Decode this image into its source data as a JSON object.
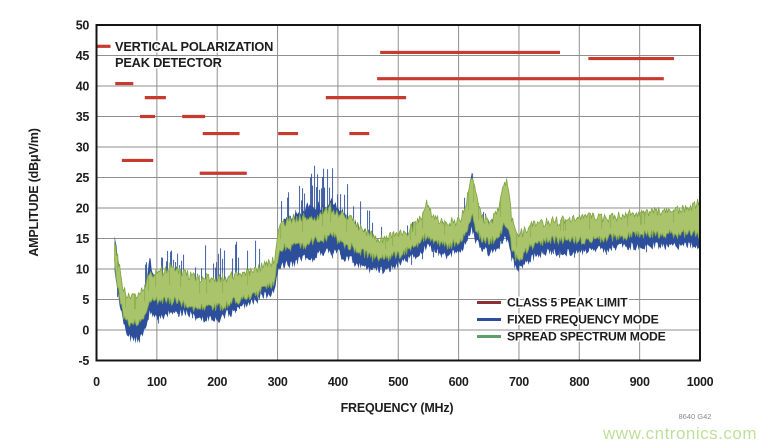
{
  "watermark": {
    "text": "www.cntronics.com",
    "color": "#bfdf9c"
  },
  "figure_code": {
    "text": "8640 G42"
  },
  "chart_data": {
    "type": "line",
    "title_annotation": {
      "line1": "VERTICAL POLARIZATION",
      "line2": "PEAK DETECTOR",
      "marker_color": "#c8392e",
      "marker_span_mhz": [
        2,
        23
      ],
      "marker_level_dbuv": 46.5
    },
    "xlabel": "FREQUENCY (MHz)",
    "ylabel": "AMPLITUDE (dBμV/m)",
    "xlim": [
      0,
      1000
    ],
    "ylim": [
      -5,
      50
    ],
    "xticks": [
      0,
      100,
      200,
      300,
      400,
      500,
      600,
      700,
      800,
      900,
      1000
    ],
    "yticks": [
      -5,
      0,
      5,
      10,
      15,
      20,
      25,
      30,
      35,
      40,
      45,
      50
    ],
    "grid": true,
    "grid_color": "#8f8f8f",
    "border_color": "#141414",
    "legend": {
      "position": "bottom-right",
      "entries": [
        {
          "label": "CLASS 5 PEAK LIMIT",
          "color": "#8b3034"
        },
        {
          "label": "FIXED FREQUENCY MODE",
          "color": "#2d4f9b"
        },
        {
          "label": "SPREAD SPECTRUM MODE",
          "color": "#5f9f6d"
        }
      ]
    },
    "limit": {
      "name": "CLASS 5 PEAK LIMIT",
      "color": "#c8392e",
      "segments_mhz_dbuv": [
        [
          31,
          61,
          40.4
        ],
        [
          42,
          94,
          27.8
        ],
        [
          72,
          97,
          35.0
        ],
        [
          80,
          115,
          38.1
        ],
        [
          142,
          180,
          35.0
        ],
        [
          171,
          249,
          25.7
        ],
        [
          176,
          237,
          32.2
        ],
        [
          301,
          334,
          32.2
        ],
        [
          380,
          513,
          38.1
        ],
        [
          419,
          452,
          32.2
        ],
        [
          465,
          940,
          41.2
        ],
        [
          470,
          768,
          45.5
        ],
        [
          815,
          957,
          44.5
        ]
      ]
    },
    "series": [
      {
        "name": "FIXED FREQUENCY MODE",
        "color": "#2d4f9b",
        "fill": "#2d4f9b",
        "spike_prob": 0.1,
        "has_down_dips": true,
        "envelope_f_lo_hi_spike": [
          [
            30,
            10,
            15,
            1
          ],
          [
            36,
            6,
            11,
            2
          ],
          [
            45,
            1,
            6,
            2
          ],
          [
            55,
            -1,
            3,
            1
          ],
          [
            65,
            -1.5,
            2.5,
            1
          ],
          [
            75,
            -1,
            4,
            2
          ],
          [
            82,
            1,
            7,
            6
          ],
          [
            88,
            3,
            12,
            3
          ],
          [
            95,
            3,
            8,
            4
          ],
          [
            105,
            2,
            7,
            5
          ],
          [
            115,
            3,
            8,
            5
          ],
          [
            125,
            3,
            8,
            6
          ],
          [
            135,
            3,
            8,
            6
          ],
          [
            145,
            3,
            7,
            6
          ],
          [
            155,
            3,
            7,
            5
          ],
          [
            165,
            2,
            6,
            7
          ],
          [
            175,
            2,
            6,
            8
          ],
          [
            185,
            2,
            6,
            8
          ],
          [
            195,
            2,
            6,
            8
          ],
          [
            205,
            2,
            6,
            8
          ],
          [
            215,
            3,
            7,
            8
          ],
          [
            225,
            3,
            7,
            8
          ],
          [
            235,
            4,
            8,
            7
          ],
          [
            245,
            4,
            8,
            7
          ],
          [
            255,
            5,
            9,
            6
          ],
          [
            265,
            5,
            9,
            6
          ],
          [
            275,
            6,
            9,
            5
          ],
          [
            285,
            6,
            9,
            4
          ],
          [
            295,
            7,
            10,
            3
          ],
          [
            302,
            10,
            16,
            5
          ],
          [
            310,
            11,
            18,
            6
          ],
          [
            320,
            11,
            18,
            6
          ],
          [
            330,
            11,
            19,
            6
          ],
          [
            340,
            12,
            19,
            7
          ],
          [
            350,
            12,
            20,
            7
          ],
          [
            360,
            12,
            20,
            7
          ],
          [
            370,
            13,
            20,
            7
          ],
          [
            380,
            13,
            20,
            7
          ],
          [
            390,
            13,
            21,
            6
          ],
          [
            400,
            13,
            20,
            6
          ],
          [
            410,
            12,
            19,
            6
          ],
          [
            420,
            12,
            18,
            7
          ],
          [
            430,
            11,
            17,
            6
          ],
          [
            440,
            11,
            16,
            5
          ],
          [
            450,
            10,
            15,
            5
          ],
          [
            460,
            10,
            14,
            5
          ],
          [
            470,
            10,
            14,
            4
          ],
          [
            480,
            10,
            13.5,
            4
          ],
          [
            490,
            10.5,
            14,
            4
          ],
          [
            500,
            11,
            14,
            4
          ],
          [
            510,
            11.5,
            14.5,
            3
          ],
          [
            520,
            12,
            15,
            3
          ],
          [
            530,
            12.5,
            16,
            3
          ],
          [
            540,
            13,
            17,
            3
          ],
          [
            548,
            14,
            19,
            2
          ],
          [
            556,
            13.5,
            17.5,
            2
          ],
          [
            565,
            13,
            17,
            2
          ],
          [
            580,
            12.5,
            16,
            2
          ],
          [
            595,
            13,
            16.5,
            2
          ],
          [
            605,
            13.5,
            17,
            3
          ],
          [
            615,
            15,
            21,
            3
          ],
          [
            622,
            17,
            25,
            2
          ],
          [
            628,
            15,
            22,
            2
          ],
          [
            638,
            13.5,
            18,
            2
          ],
          [
            650,
            13,
            17,
            2
          ],
          [
            660,
            13,
            17.5,
            2
          ],
          [
            668,
            14,
            19,
            2
          ],
          [
            675,
            15,
            22,
            2
          ],
          [
            680,
            15,
            22,
            2
          ],
          [
            688,
            12,
            17,
            2
          ],
          [
            695,
            10.5,
            14.5,
            2
          ],
          [
            705,
            10.5,
            14,
            2
          ],
          [
            715,
            11.5,
            15,
            2
          ],
          [
            730,
            12.5,
            16,
            2
          ],
          [
            750,
            13,
            16,
            2
          ],
          [
            775,
            13,
            16.5,
            2
          ],
          [
            800,
            13,
            16.5,
            2
          ],
          [
            825,
            13.5,
            17,
            2
          ],
          [
            850,
            13.5,
            17,
            2
          ],
          [
            875,
            14,
            17,
            2
          ],
          [
            900,
            14,
            17.5,
            2
          ],
          [
            925,
            14,
            17.5,
            2
          ],
          [
            950,
            14,
            18,
            2
          ],
          [
            975,
            14,
            18.5,
            2
          ],
          [
            1000,
            14,
            19,
            2
          ]
        ]
      },
      {
        "name": "SPREAD SPECTRUM MODE",
        "color": "#7fa544",
        "fill": "#a9c46b",
        "spike_prob": 0.07,
        "has_down_dips": false,
        "envelope_f_lo_hi_spike": [
          [
            30,
            11,
            14,
            1
          ],
          [
            36,
            7,
            11,
            1
          ],
          [
            45,
            2,
            6,
            1
          ],
          [
            55,
            1,
            5,
            1
          ],
          [
            65,
            1.5,
            5.5,
            1
          ],
          [
            75,
            2,
            6,
            1
          ],
          [
            82,
            3,
            7,
            1.5
          ],
          [
            88,
            5,
            9,
            1.5
          ],
          [
            95,
            5,
            9,
            1.5
          ],
          [
            105,
            5,
            9,
            1.5
          ],
          [
            115,
            5,
            9.5,
            1.5
          ],
          [
            125,
            5,
            10,
            1.5
          ],
          [
            135,
            5,
            9.5,
            1.5
          ],
          [
            145,
            4.5,
            9,
            1.5
          ],
          [
            155,
            4,
            8.5,
            1.5
          ],
          [
            165,
            4,
            8,
            1.5
          ],
          [
            175,
            4,
            8,
            1.5
          ],
          [
            185,
            4,
            8,
            1.5
          ],
          [
            195,
            4,
            8,
            1.5
          ],
          [
            205,
            4,
            8,
            1.5
          ],
          [
            215,
            4.5,
            8,
            1.5
          ],
          [
            225,
            5,
            8.5,
            1.5
          ],
          [
            235,
            5,
            9,
            1.5
          ],
          [
            245,
            5.5,
            9,
            1.5
          ],
          [
            255,
            6,
            9,
            1.5
          ],
          [
            265,
            6,
            9.5,
            1.5
          ],
          [
            275,
            7,
            10,
            1.5
          ],
          [
            285,
            7.5,
            10.5,
            1.5
          ],
          [
            295,
            8,
            11,
            1.5
          ],
          [
            302,
            13,
            16,
            1.5
          ],
          [
            310,
            14,
            17,
            1.5
          ],
          [
            320,
            14,
            17.5,
            1.5
          ],
          [
            330,
            14,
            18,
            1.5
          ],
          [
            340,
            14,
            18,
            1.5
          ],
          [
            350,
            14.5,
            18,
            1.5
          ],
          [
            360,
            15,
            18,
            1.5
          ],
          [
            370,
            15,
            18.5,
            1.5
          ],
          [
            380,
            15.5,
            19,
            1.5
          ],
          [
            390,
            16,
            19.5,
            1.5
          ],
          [
            400,
            15,
            19,
            1.5
          ],
          [
            410,
            14.5,
            18,
            1.5
          ],
          [
            420,
            14,
            18,
            1.5
          ],
          [
            430,
            13.5,
            17,
            1.5
          ],
          [
            440,
            13,
            16,
            1.5
          ],
          [
            450,
            12.5,
            15.5,
            1.5
          ],
          [
            460,
            12,
            15,
            1.5
          ],
          [
            470,
            12,
            14.5,
            1.5
          ],
          [
            480,
            12,
            14.5,
            1.5
          ],
          [
            490,
            12.5,
            15,
            1.5
          ],
          [
            500,
            12.5,
            15,
            1.5
          ],
          [
            510,
            13,
            15.5,
            1.5
          ],
          [
            520,
            13.5,
            16,
            1.5
          ],
          [
            530,
            14,
            17,
            1.5
          ],
          [
            540,
            15,
            18,
            1.5
          ],
          [
            548,
            16,
            20.5,
            1
          ],
          [
            556,
            15,
            18.5,
            1
          ],
          [
            565,
            14.5,
            17.5,
            1
          ],
          [
            580,
            14,
            17,
            1
          ],
          [
            595,
            14.5,
            17.5,
            1
          ],
          [
            605,
            15,
            18,
            1
          ],
          [
            615,
            16.5,
            21.5,
            1
          ],
          [
            622,
            19,
            25,
            1
          ],
          [
            628,
            17,
            22.5,
            1
          ],
          [
            638,
            15,
            18,
            1
          ],
          [
            650,
            15,
            17.5,
            1
          ],
          [
            660,
            15,
            18,
            1
          ],
          [
            668,
            16,
            20,
            1
          ],
          [
            675,
            17.5,
            23.5,
            1
          ],
          [
            680,
            17.5,
            24,
            1
          ],
          [
            688,
            14,
            18,
            1
          ],
          [
            695,
            12,
            15,
            1
          ],
          [
            705,
            12.5,
            15.5,
            1
          ],
          [
            715,
            13.5,
            16.5,
            1
          ],
          [
            730,
            14.5,
            17,
            1
          ],
          [
            750,
            15,
            17.5,
            1
          ],
          [
            775,
            15,
            17.5,
            1
          ],
          [
            800,
            15,
            18,
            1
          ],
          [
            825,
            15,
            18,
            1
          ],
          [
            850,
            15.5,
            18,
            1
          ],
          [
            875,
            15.5,
            18.5,
            1
          ],
          [
            900,
            16,
            18.5,
            1
          ],
          [
            925,
            16,
            19,
            1
          ],
          [
            950,
            16,
            19,
            1
          ],
          [
            975,
            16,
            19.5,
            1
          ],
          [
            1000,
            16,
            20.5,
            1
          ]
        ]
      }
    ]
  }
}
